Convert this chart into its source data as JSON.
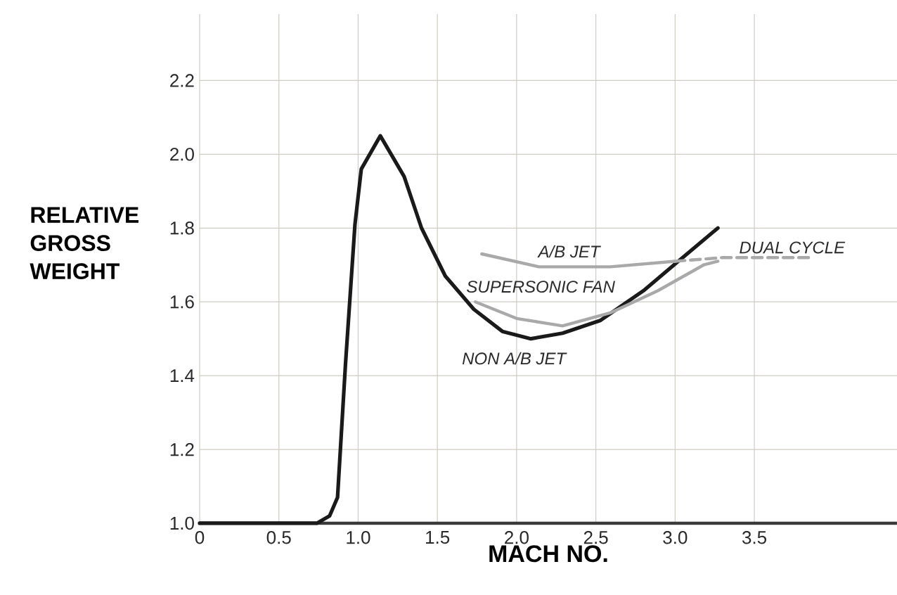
{
  "chart_data": {
    "type": "line",
    "xlabel": "MACH NO.",
    "ylabel": "RELATIVE GROSS WEIGHT",
    "xlim": [
      0,
      4.4
    ],
    "ylim": [
      1.0,
      2.38
    ],
    "xticks": [
      0,
      0.5,
      {
        "value": 1,
        "label": "1.0"
      },
      1.5,
      {
        "value": 2,
        "label": "2.0"
      },
      2.5,
      {
        "value": 3,
        "label": "3.0"
      },
      3.5
    ],
    "yticks": [
      {
        "value": 1,
        "label": "1.0"
      },
      1.2,
      1.4,
      1.6,
      1.8,
      {
        "value": 2,
        "label": "2.0"
      },
      2.2
    ],
    "grid": true,
    "line_style": "solid",
    "series": [
      {
        "name": "NON A/B JET",
        "color": "#1a1a1a",
        "x": [
          0,
          0.74,
          0.82,
          0.87,
          0.92,
          0.98,
          1.02,
          1.14,
          1.29,
          1.4,
          1.55,
          1.73,
          1.91,
          2.09,
          2.29,
          2.53,
          2.8,
          3.02,
          3.27
        ],
        "values": [
          1.0,
          1.0,
          1.02,
          1.07,
          1.43,
          1.81,
          1.96,
          2.05,
          1.94,
          1.8,
          1.67,
          1.58,
          1.52,
          1.5,
          1.515,
          1.55,
          1.63,
          1.71,
          1.8
        ]
      },
      {
        "name": "A/B JET",
        "color": "#a9a9a9",
        "x": [
          1.78,
          2.14,
          2.59,
          3.0
        ],
        "values": [
          1.73,
          1.695,
          1.695,
          1.71
        ]
      },
      {
        "name": "SUPERSONIC FAN",
        "color": "#a9a9a9",
        "x": [
          1.74,
          2.0,
          2.29,
          2.59,
          2.89,
          3.18,
          3.27
        ],
        "values": [
          1.6,
          1.555,
          1.535,
          1.57,
          1.63,
          1.7,
          1.71
        ]
      },
      {
        "name": "DUAL CYCLE",
        "color": "#a9a9a9",
        "line_style": "dashed",
        "x": [
          3.0,
          3.3,
          3.87
        ],
        "values": [
          1.71,
          1.72,
          1.72
        ]
      }
    ]
  }
}
